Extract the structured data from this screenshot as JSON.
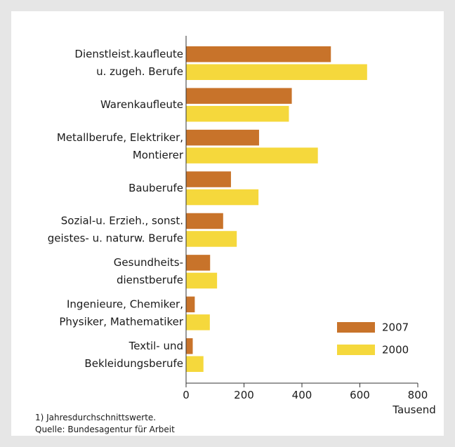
{
  "chart_data": {
    "type": "bar",
    "orientation": "horizontal",
    "categories": [
      [
        "Dienstleist.kaufleute",
        "u. zugeh. Berufe"
      ],
      [
        "Warenkaufleute"
      ],
      [
        "Metallberufe, Elektriker,",
        "Montierer"
      ],
      [
        "Bauberufe"
      ],
      [
        "Sozial-u. Erzieh., sonst.",
        "geistes- u. naturw. Berufe"
      ],
      [
        "Gesundheits-",
        "dienstberufe"
      ],
      [
        "Ingenieure, Chemiker,",
        "Physiker, Mathematiker"
      ],
      [
        "Textil- und",
        "Bekleidungsberufe"
      ]
    ],
    "series": [
      {
        "name": "2007",
        "color": "#c8732a",
        "values": [
          500,
          365,
          252,
          155,
          128,
          83,
          30,
          23
        ]
      },
      {
        "name": "2000",
        "color": "#f5d83c",
        "values": [
          625,
          355,
          455,
          250,
          175,
          107,
          82,
          60
        ]
      }
    ],
    "xlim": [
      0,
      800
    ],
    "xticks": [
      "0",
      "200",
      "400",
      "600",
      "800"
    ],
    "xunit": "Tausend",
    "legend_position": "bottom-right",
    "grid": false
  },
  "footnotes": {
    "note": "1) Jahresdurchschnittswerte.",
    "source": "Quelle: Bundesagentur für Arbeit"
  }
}
